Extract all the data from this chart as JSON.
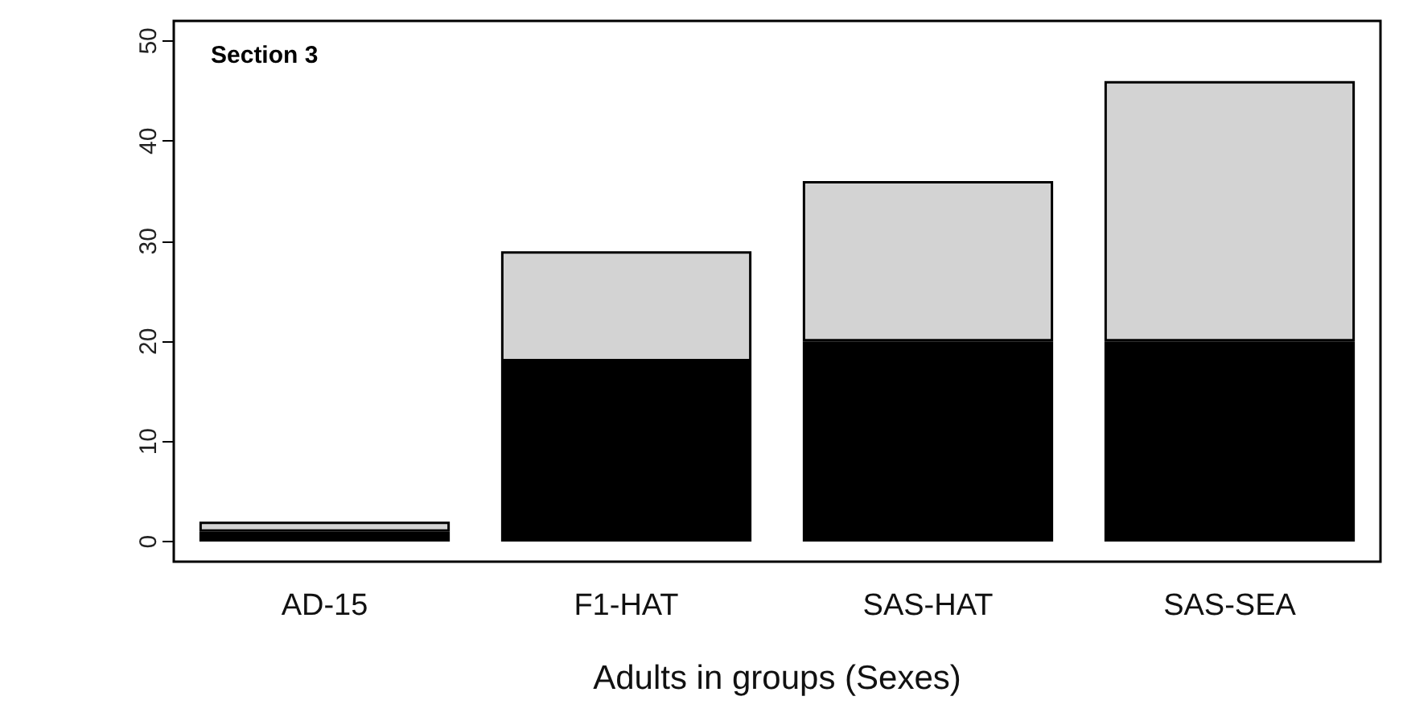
{
  "chart_data": {
    "type": "bar",
    "title": "Section 3",
    "xlabel": "Adults in groups (Sexes)",
    "categories": [
      "AD-15",
      "F1-HAT",
      "SAS-HAT",
      "SAS-SEA"
    ],
    "stacked": true,
    "series": [
      {
        "color": "#000000",
        "values": [
          1,
          18,
          20,
          20
        ]
      },
      {
        "color": "#d3d3d3",
        "values": [
          1,
          11,
          16,
          26
        ]
      }
    ],
    "ylim": [
      -2,
      52
    ],
    "yticks": [
      0,
      10,
      20,
      30,
      40,
      50
    ],
    "grid": false
  }
}
